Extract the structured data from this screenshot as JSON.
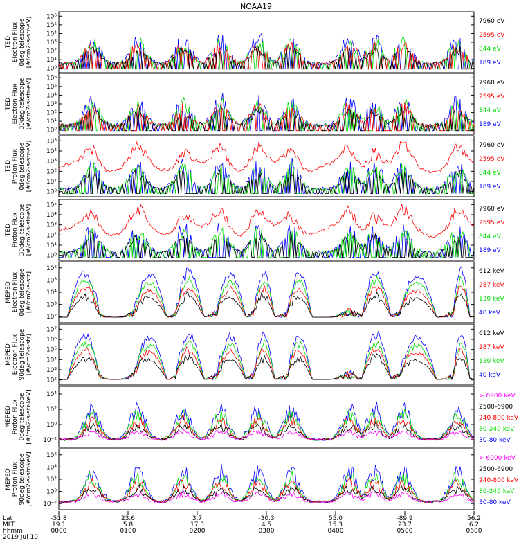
{
  "title": "NOAA19",
  "x_axis": {
    "row_labels": [
      "Lat",
      "MLT",
      "hhmm",
      "2019 Jul 10"
    ],
    "ticks": [
      {
        "lat": "-51.8",
        "mlt": "19.1",
        "hhmm": "0000"
      },
      {
        "lat": "23.6",
        "mlt": "5.8",
        "hhmm": "0100"
      },
      {
        "lat": "3.7",
        "mlt": "17.3",
        "hhmm": "0200"
      },
      {
        "lat": "-30.3",
        "mlt": "4.5",
        "hhmm": "0300"
      },
      {
        "lat": "55.0",
        "mlt": "15.3",
        "hhmm": "0400"
      },
      {
        "lat": "-89.9",
        "mlt": "23.7",
        "hhmm": "0500"
      },
      {
        "lat": "56.2",
        "mlt": "6.2",
        "hhmm": "0600"
      }
    ]
  },
  "panels": [
    {
      "ylabel": [
        "TED",
        "Electron Flux",
        "0deg telescope",
        "[#/cm2-s-str-eV]"
      ],
      "yticks": [
        "10⁰",
        "10¹",
        "10²",
        "10³",
        "10⁴",
        "10⁵",
        "10⁶"
      ],
      "legend": [
        {
          "label": "7960 eV",
          "color": "#000000"
        },
        {
          "label": "2595 eV",
          "color": "#ff0000"
        },
        {
          "label": "844 eV",
          "color": "#00dd00"
        },
        {
          "label": "189 eV",
          "color": "#0000ff"
        }
      ]
    },
    {
      "ylabel": [
        "TED",
        "Electron Flux",
        "30deg telescope",
        "[#/cm2-s-str-eV]"
      ],
      "yticks": [
        "10⁰",
        "10¹",
        "10²",
        "10³",
        "10⁴",
        "10⁵",
        "10⁶"
      ],
      "legend": [
        {
          "label": "7960 eV",
          "color": "#000000"
        },
        {
          "label": "2595 eV",
          "color": "#ff0000"
        },
        {
          "label": "844 eV",
          "color": "#00dd00"
        },
        {
          "label": "189 eV",
          "color": "#0000ff"
        }
      ]
    },
    {
      "ylabel": [
        "TED",
        "Proton Flux",
        "0deg telescope",
        "[#/cm2-s-str-eV]"
      ],
      "yticks": [
        "10⁰",
        "10¹",
        "10²",
        "10³",
        "10⁴",
        "10⁵"
      ],
      "legend": [
        {
          "label": "7960 eV",
          "color": "#000000"
        },
        {
          "label": "2595 eV",
          "color": "#ff0000"
        },
        {
          "label": "844 eV",
          "color": "#00dd00"
        },
        {
          "label": "189 eV",
          "color": "#0000ff"
        }
      ]
    },
    {
      "ylabel": [
        "TED",
        "Proton Flux",
        "30deg telescope",
        "[#/cm2-s-str-eV]"
      ],
      "yticks": [
        "10⁰",
        "10¹",
        "10²",
        "10³",
        "10⁴",
        "10⁵"
      ],
      "legend": [
        {
          "label": "7960 eV",
          "color": "#000000"
        },
        {
          "label": "2595 eV",
          "color": "#ff0000"
        },
        {
          "label": "844 eV",
          "color": "#00dd00"
        },
        {
          "label": "189 eV",
          "color": "#0000ff"
        }
      ]
    },
    {
      "ylabel": [
        "MEPED",
        "Electron Flux",
        "0deg telescope",
        "[#/cm2-s-str]"
      ],
      "yticks": [
        "10²",
        "10³",
        "10⁴",
        "10⁵",
        "10⁶"
      ],
      "legend": [
        {
          "label": "612 keV",
          "color": "#000000"
        },
        {
          "label": "287 keV",
          "color": "#ff0000"
        },
        {
          "label": "130 keV",
          "color": "#00dd00"
        },
        {
          "label": "40 keV",
          "color": "#0000ff"
        }
      ]
    },
    {
      "ylabel": [
        "MEPED",
        "Electron Flux",
        "90deg telescope",
        "[#/cm2-s-str]"
      ],
      "yticks": [
        "10²",
        "10³",
        "10⁴",
        "10⁵",
        "10⁶",
        "10⁷"
      ],
      "legend": [
        {
          "label": "612 keV",
          "color": "#000000"
        },
        {
          "label": "287 keV",
          "color": "#ff0000"
        },
        {
          "label": "130 keV",
          "color": "#00dd00"
        },
        {
          "label": "40 keV",
          "color": "#0000ff"
        }
      ]
    },
    {
      "ylabel": [
        "MEPED",
        "Proton Flux",
        "0deg telescope",
        "[#/cm2-s-str-keV]"
      ],
      "yticks": [
        "10⁻²",
        "10⁰",
        "10²",
        "10⁴"
      ],
      "legend": [
        {
          "label": "> 6900 keV",
          "color": "#ff00ff"
        },
        {
          "label": "2500-6900",
          "color": "#000000"
        },
        {
          "label": "240-800 keV",
          "color": "#ff0000"
        },
        {
          "label": "80-240 keV",
          "color": "#00dd00"
        },
        {
          "label": "30-80 keV",
          "color": "#0000ff"
        }
      ]
    },
    {
      "ylabel": [
        "MEPED",
        "Proton Flux",
        "90deg telescope",
        "[#/cm2-s-str-keV]"
      ],
      "yticks": [
        "10⁻²",
        "10⁰",
        "10²",
        "10⁴",
        "10⁶"
      ],
      "legend": [
        {
          "label": "> 6900 keV",
          "color": "#ff00ff"
        },
        {
          "label": "2500-6900",
          "color": "#000000"
        },
        {
          "label": "240-800 keV",
          "color": "#ff0000"
        },
        {
          "label": "80-240 keV",
          "color": "#00dd00"
        },
        {
          "label": "30-80 keV",
          "color": "#0000ff"
        }
      ]
    }
  ],
  "chart_data": {
    "type": "line",
    "title": "NOAA19",
    "x_range": [
      "0000",
      "0600"
    ],
    "x_unit": "hhmm",
    "yscale": "log",
    "panel_count": 8,
    "description_of_series": "Per-panel flux time series for each energy channel listed in the panel legends; one series per legend entry.",
    "approx_peak_times_hhmm": [
      "0030",
      "0115",
      "0155",
      "0235",
      "0310",
      "0335",
      "0420",
      "0445",
      "0510",
      "0555"
    ]
  }
}
